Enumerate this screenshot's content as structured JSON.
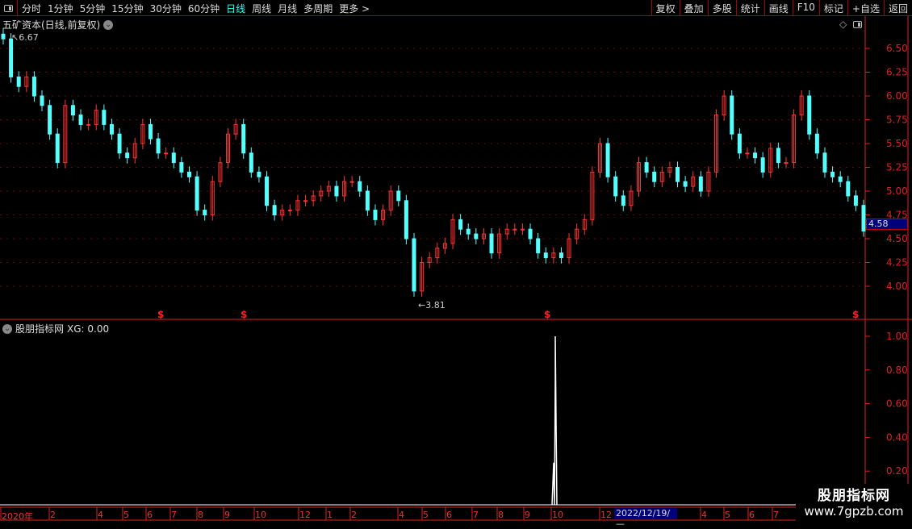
{
  "toolbar": {
    "periods": [
      "分时",
      "1分钟",
      "5分钟",
      "15分钟",
      "30分钟",
      "60分钟",
      "日线",
      "周线",
      "月线",
      "多周期",
      "更多 >"
    ],
    "active": "日线",
    "buttons": [
      "复权",
      "叠加",
      "多股",
      "统计",
      "画线",
      "F10",
      "标记",
      "+自选",
      "返回"
    ]
  },
  "chart": {
    "title": "五矿资本(日线,前复权)",
    "max_label": "6.67",
    "min_label": "3.81",
    "last_price": "4.58",
    "y_ticks": [
      "6.50",
      "6.25",
      "6.00",
      "5.75",
      "5.50",
      "5.25",
      "5.00",
      "4.75",
      "4.50",
      "4.25",
      "4.00"
    ],
    "closes": [
      6.6,
      6.2,
      6.1,
      6.2,
      6.0,
      5.9,
      5.6,
      5.3,
      5.9,
      5.8,
      5.7,
      5.7,
      5.85,
      5.7,
      5.6,
      5.4,
      5.35,
      5.5,
      5.7,
      5.55,
      5.4,
      5.4,
      5.3,
      5.2,
      5.15,
      4.8,
      4.75,
      5.1,
      5.3,
      5.6,
      5.7,
      5.4,
      5.2,
      5.15,
      4.85,
      4.75,
      4.8,
      4.8,
      4.9,
      4.9,
      4.95,
      5.0,
      5.05,
      4.95,
      5.1,
      5.1,
      5.0,
      4.8,
      4.7,
      4.8,
      5.0,
      4.9,
      4.5,
      3.95,
      4.25,
      4.3,
      4.4,
      4.45,
      4.7,
      4.6,
      4.55,
      4.5,
      4.55,
      4.35,
      4.55,
      4.6,
      4.6,
      4.6,
      4.5,
      4.35,
      4.3,
      4.35,
      4.3,
      4.5,
      4.6,
      4.7,
      5.2,
      5.5,
      5.15,
      4.95,
      4.85,
      5.0,
      5.3,
      5.2,
      5.1,
      5.2,
      5.25,
      5.1,
      5.05,
      5.15,
      5.0,
      5.2,
      5.8,
      6.0,
      5.6,
      5.4,
      5.4,
      5.35,
      5.2,
      5.45,
      5.3,
      5.3,
      5.8,
      6.0,
      5.6,
      5.4,
      5.2,
      5.15,
      5.1,
      4.95,
      4.85,
      4.58
    ],
    "signal_marker": "$",
    "colors": {
      "up": "#ff3232",
      "down": "#54ffff",
      "axis": "#e02020"
    }
  },
  "indicator": {
    "name": "股朋指标网",
    "value_label": "XG: 0.00",
    "y_ticks": [
      "1.00",
      "0.80",
      "0.60",
      "0.40",
      "0.20"
    ],
    "spike_values": [
      0.25,
      0.75,
      1.0
    ]
  },
  "date_axis": {
    "labels": [
      "2020年",
      "2",
      "4",
      "5",
      "6",
      "7",
      "8",
      "9",
      "10",
      "12",
      "1",
      "2",
      "4",
      "5",
      "6",
      "7",
      "8",
      "9",
      "10",
      "12",
      "4",
      "5",
      "6",
      "7"
    ],
    "highlight": "2022/12/19/—"
  },
  "watermark": {
    "name": "股朋指标网",
    "url": "www.7gpzb.com"
  }
}
